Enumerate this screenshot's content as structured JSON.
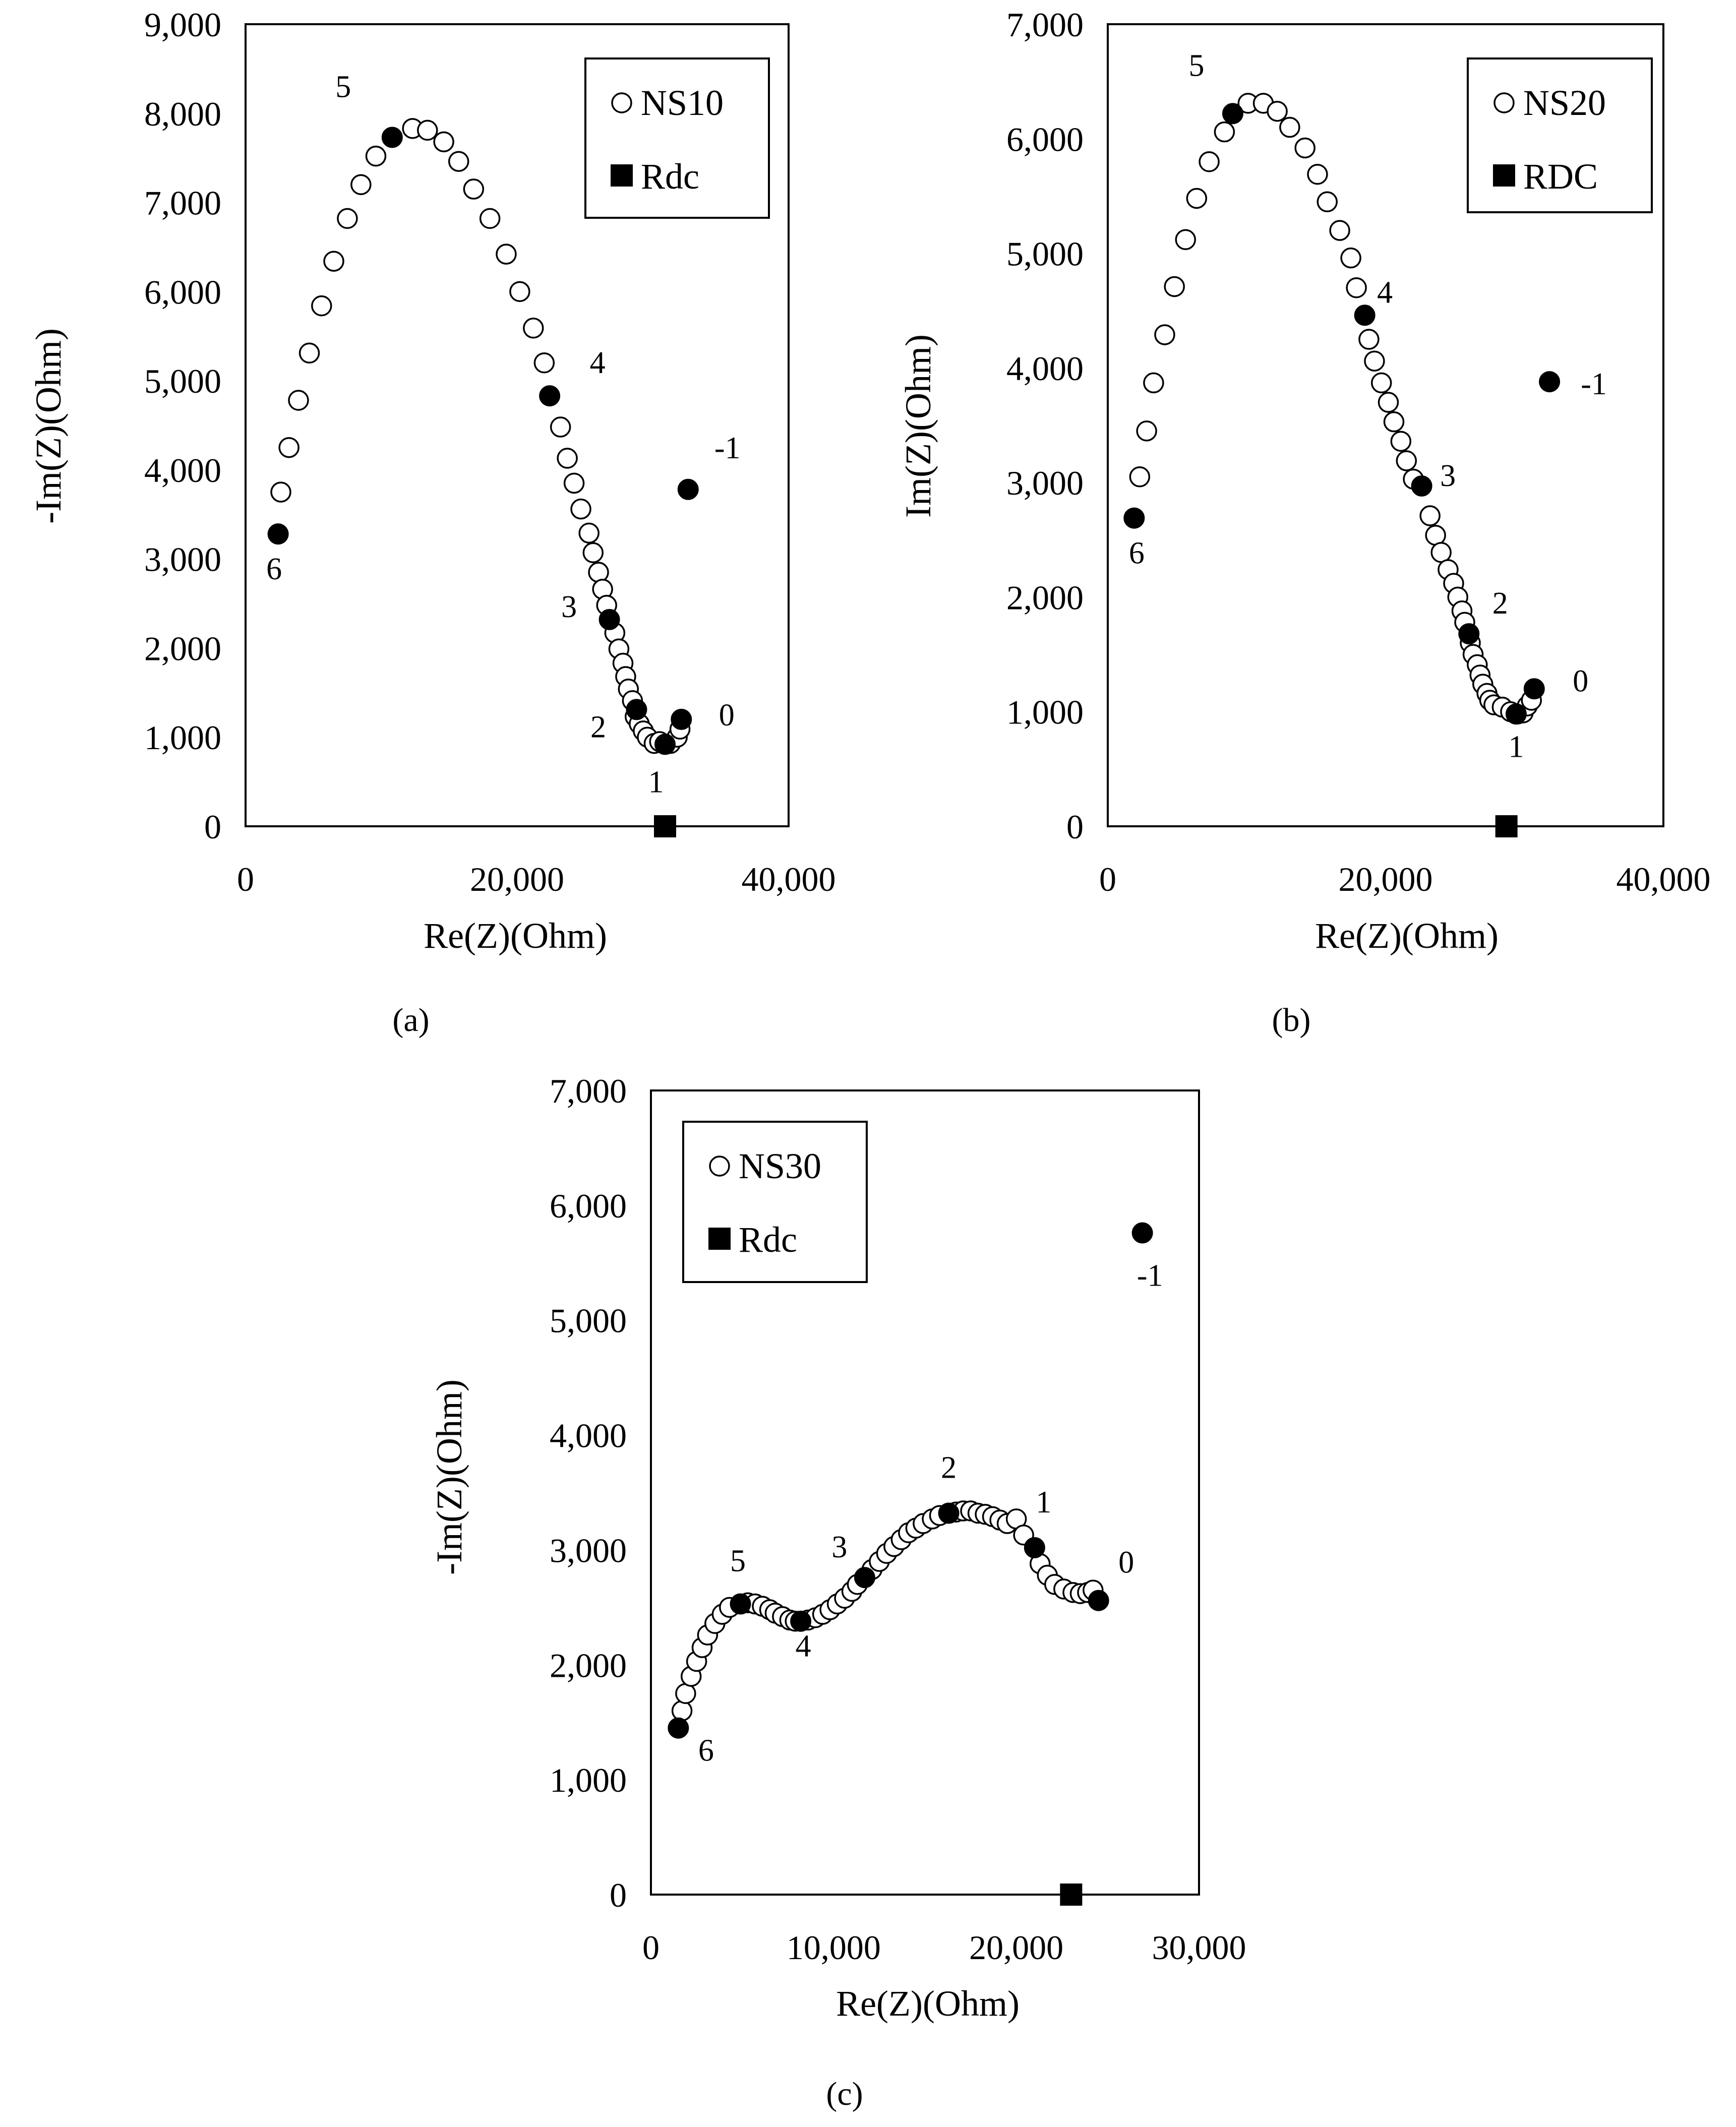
{
  "chart_data": [
    {
      "type": "scatter",
      "panel_label": "(a)",
      "xlabel": "Re(Z)(Ohm)",
      "ylabel": "-Im(Z)(Ohm)",
      "xlim": [
        0,
        40000
      ],
      "ylim": [
        0,
        9000
      ],
      "xticks": [
        0,
        20000,
        40000
      ],
      "yticks": [
        0,
        1000,
        2000,
        3000,
        4000,
        5000,
        6000,
        7000,
        8000,
        9000
      ],
      "xtick_labels": [
        "0",
        "20,000",
        "40,000"
      ],
      "ytick_labels": [
        "0",
        "1,000",
        "2,000",
        "3,000",
        "4,000",
        "5,000",
        "6,000",
        "7,000",
        "8,000",
        "9,000"
      ],
      "legend_position": "top-right",
      "series": [
        {
          "name": "NS10",
          "marker": "open-circle",
          "points": [
            [
              2600,
              3750
            ],
            [
              3200,
              4250
            ],
            [
              3900,
              4780
            ],
            [
              4700,
              5310
            ],
            [
              5600,
              5840
            ],
            [
              6500,
              6340
            ],
            [
              7500,
              6820
            ],
            [
              8500,
              7200
            ],
            [
              9600,
              7520
            ],
            [
              12300,
              7830
            ],
            [
              13400,
              7810
            ],
            [
              14600,
              7680
            ],
            [
              15700,
              7460
            ],
            [
              16800,
              7150
            ],
            [
              18000,
              6820
            ],
            [
              19200,
              6420
            ],
            [
              20200,
              6000
            ],
            [
              21200,
              5590
            ],
            [
              22000,
              5200
            ],
            [
              23200,
              4480
            ],
            [
              23700,
              4130
            ],
            [
              24200,
              3850
            ],
            [
              24700,
              3560
            ],
            [
              25300,
              3290
            ],
            [
              25600,
              3070
            ],
            [
              26000,
              2850
            ],
            [
              26300,
              2660
            ],
            [
              26600,
              2480
            ],
            [
              27200,
              2170
            ],
            [
              27500,
              1990
            ],
            [
              27800,
              1830
            ],
            [
              28000,
              1680
            ],
            [
              28200,
              1540
            ],
            [
              28500,
              1410
            ],
            [
              28700,
              1230
            ],
            [
              29000,
              1150
            ],
            [
              29300,
              1070
            ],
            [
              29600,
              1000
            ],
            [
              30100,
              930
            ],
            [
              30500,
              950
            ],
            [
              31300,
              930
            ],
            [
              31800,
              1000
            ],
            [
              32000,
              1090
            ]
          ]
        },
        {
          "name": "Rdc",
          "marker": "filled-square",
          "points": [
            [
              30900,
              0
            ]
          ]
        },
        {
          "name": "labelled frequency points",
          "marker": "filled-circle",
          "points": [
            {
              "x": 2400,
              "y": 3280,
              "label": "6"
            },
            {
              "x": 10800,
              "y": 7730,
              "label": "5"
            },
            {
              "x": 22400,
              "y": 4830,
              "label": "4"
            },
            {
              "x": 26800,
              "y": 2320,
              "label": "3"
            },
            {
              "x": 28800,
              "y": 1310,
              "label": "2"
            },
            {
              "x": 30900,
              "y": 920,
              "label": "1"
            },
            {
              "x": 32100,
              "y": 1200,
              "label": "0"
            },
            {
              "x": 32600,
              "y": 3780,
              "label": "-1"
            }
          ]
        }
      ]
    },
    {
      "type": "scatter",
      "panel_label": "(b)",
      "xlabel": "Re(Z)(Ohm)",
      "ylabel": "Im(Z)(Ohm)",
      "xlim": [
        0,
        40000
      ],
      "ylim": [
        0,
        7000
      ],
      "xticks": [
        0,
        20000,
        40000
      ],
      "yticks": [
        0,
        1000,
        2000,
        3000,
        4000,
        5000,
        6000,
        7000
      ],
      "xtick_labels": [
        "0",
        "20,000",
        "40,000"
      ],
      "ytick_labels": [
        "0",
        "1,000",
        "2,000",
        "3,000",
        "4,000",
        "5,000",
        "6,000",
        "7,000"
      ],
      "legend_position": "top-right",
      "series": [
        {
          "name": "NS20",
          "marker": "open-circle",
          "points": [
            [
              2300,
              3050
            ],
            [
              2800,
              3450
            ],
            [
              3300,
              3870
            ],
            [
              4100,
              4290
            ],
            [
              4800,
              4710
            ],
            [
              5600,
              5120
            ],
            [
              6400,
              5480
            ],
            [
              7300,
              5800
            ],
            [
              8400,
              6060
            ],
            [
              10100,
              6310
            ],
            [
              11200,
              6310
            ],
            [
              12200,
              6240
            ],
            [
              13100,
              6100
            ],
            [
              14200,
              5920
            ],
            [
              15100,
              5690
            ],
            [
              15800,
              5450
            ],
            [
              16700,
              5200
            ],
            [
              17500,
              4960
            ],
            [
              17900,
              4700
            ],
            [
              18800,
              4250
            ],
            [
              19200,
              4060
            ],
            [
              19700,
              3870
            ],
            [
              20200,
              3700
            ],
            [
              20600,
              3530
            ],
            [
              21100,
              3360
            ],
            [
              21500,
              3190
            ],
            [
              22000,
              3030
            ],
            [
              23200,
              2710
            ],
            [
              23600,
              2540
            ],
            [
              24000,
              2390
            ],
            [
              24500,
              2240
            ],
            [
              24900,
              2120
            ],
            [
              25200,
              2000
            ],
            [
              25500,
              1880
            ],
            [
              25700,
              1780
            ],
            [
              26100,
              1600
            ],
            [
              26300,
              1500
            ],
            [
              26600,
              1410
            ],
            [
              26800,
              1320
            ],
            [
              27000,
              1240
            ],
            [
              27300,
              1160
            ],
            [
              27500,
              1100
            ],
            [
              27800,
              1060
            ],
            [
              28400,
              1040
            ],
            [
              29000,
              1000
            ],
            [
              29500,
              980
            ],
            [
              29900,
              990
            ],
            [
              30200,
              1050
            ],
            [
              30500,
              1100
            ]
          ]
        },
        {
          "name": "RDC",
          "marker": "filled-square",
          "points": [
            [
              28700,
              0
            ]
          ]
        },
        {
          "name": "labelled frequency points",
          "marker": "filled-circle",
          "points": [
            {
              "x": 1900,
              "y": 2690,
              "label": "6"
            },
            {
              "x": 9000,
              "y": 6220,
              "label": "5"
            },
            {
              "x": 18500,
              "y": 4460,
              "label": "4"
            },
            {
              "x": 22600,
              "y": 2970,
              "label": "3"
            },
            {
              "x": 26000,
              "y": 1680,
              "label": "2"
            },
            {
              "x": 29400,
              "y": 980,
              "label": "1"
            },
            {
              "x": 30700,
              "y": 1200,
              "label": "0"
            },
            {
              "x": 31800,
              "y": 3880,
              "label": "-1"
            }
          ]
        }
      ]
    },
    {
      "type": "scatter",
      "panel_label": "(c)",
      "xlabel": "Re(Z)(Ohm)",
      "ylabel": "-Im(Z)(Ohm)",
      "xlim": [
        0,
        30000
      ],
      "ylim": [
        0,
        7000
      ],
      "xticks": [
        0,
        10000,
        20000,
        30000
      ],
      "yticks": [
        0,
        1000,
        2000,
        3000,
        4000,
        5000,
        6000,
        7000
      ],
      "xtick_labels": [
        "0",
        "10,000",
        "20,000",
        "30,000"
      ],
      "ytick_labels": [
        "0",
        "1,000",
        "2,000",
        "3,000",
        "4,000",
        "5,000",
        "6,000",
        "7,000"
      ],
      "legend_position": "top-left",
      "series": [
        {
          "name": "NS30",
          "marker": "open-circle",
          "points": [
            [
              1700,
              1600
            ],
            [
              1900,
              1750
            ],
            [
              2200,
              1900
            ],
            [
              2500,
              2030
            ],
            [
              2800,
              2150
            ],
            [
              3100,
              2260
            ],
            [
              3500,
              2360
            ],
            [
              3900,
              2440
            ],
            [
              4300,
              2500
            ],
            [
              5300,
              2540
            ],
            [
              5700,
              2530
            ],
            [
              6100,
              2510
            ],
            [
              6500,
              2480
            ],
            [
              6800,
              2450
            ],
            [
              7200,
              2420
            ],
            [
              7600,
              2390
            ],
            [
              7900,
              2380
            ],
            [
              8600,
              2390
            ],
            [
              9000,
              2410
            ],
            [
              9400,
              2440
            ],
            [
              9800,
              2480
            ],
            [
              10200,
              2530
            ],
            [
              10600,
              2580
            ],
            [
              11000,
              2640
            ],
            [
              11300,
              2700
            ],
            [
              12100,
              2830
            ],
            [
              12500,
              2900
            ],
            [
              12900,
              2970
            ],
            [
              13300,
              3030
            ],
            [
              13700,
              3090
            ],
            [
              14100,
              3150
            ],
            [
              14500,
              3190
            ],
            [
              14900,
              3230
            ],
            [
              15400,
              3270
            ],
            [
              15800,
              3300
            ],
            [
              16700,
              3330
            ],
            [
              17100,
              3340
            ],
            [
              17500,
              3340
            ],
            [
              17900,
              3320
            ],
            [
              18300,
              3310
            ],
            [
              18700,
              3290
            ],
            [
              19100,
              3260
            ],
            [
              19500,
              3230
            ],
            [
              20000,
              3270
            ],
            [
              20400,
              3130
            ],
            [
              21300,
              2880
            ],
            [
              21700,
              2780
            ],
            [
              22100,
              2700
            ],
            [
              22600,
              2660
            ],
            [
              23100,
              2630
            ],
            [
              23500,
              2620
            ],
            [
              23900,
              2630
            ],
            [
              24200,
              2650
            ]
          ]
        },
        {
          "name": "Rdc",
          "marker": "filled-square",
          "points": [
            [
              23000,
              0
            ]
          ]
        },
        {
          "name": "labelled frequency points",
          "marker": "filled-circle",
          "points": [
            {
              "x": 1500,
              "y": 1450,
              "label": "6"
            },
            {
              "x": 4900,
              "y": 2530,
              "label": "5"
            },
            {
              "x": 8200,
              "y": 2380,
              "label": "4"
            },
            {
              "x": 11700,
              "y": 2760,
              "label": "3"
            },
            {
              "x": 16300,
              "y": 3320,
              "label": "2"
            },
            {
              "x": 21000,
              "y": 3020,
              "label": "1"
            },
            {
              "x": 24500,
              "y": 2560,
              "label": "0"
            },
            {
              "x": 26900,
              "y": 5760,
              "label": "-1"
            }
          ]
        }
      ]
    }
  ]
}
